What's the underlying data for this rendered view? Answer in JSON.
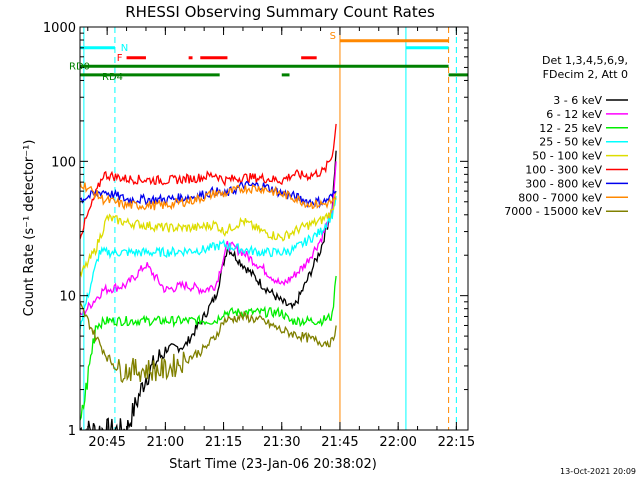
{
  "chart_data": {
    "type": "line",
    "title": "RHESSI Observing Summary Count Rates",
    "xlabel": "Start Time (23-Jan-06 20:38:02)",
    "ylabel": "Count Rate (s⁻¹ detector⁻¹)",
    "yscale": "log",
    "ylim": [
      1,
      1000
    ],
    "xlim": [
      "20:38",
      "22:18"
    ],
    "x_ticks": [
      "20:45",
      "21:00",
      "21:15",
      "21:30",
      "21:45",
      "22:00",
      "22:15"
    ],
    "y_ticks": [
      "1",
      "10",
      "100",
      "1000"
    ],
    "legend_header": [
      "Det 1,3,4,5,6,9,",
      "FDecim 2, Att 0"
    ],
    "legend_position": "right",
    "footer_date": "13-Oct-2021 20:09",
    "series": [
      {
        "name": "3 - 6 keV",
        "color": "#000000",
        "x": [
          "20:38",
          "20:44",
          "20:50",
          "20:55",
          "21:00",
          "21:05",
          "21:10",
          "21:13",
          "21:16",
          "21:20",
          "21:25",
          "21:30",
          "21:33",
          "21:36",
          "21:40",
          "21:43",
          "21:44"
        ],
        "y": [
          1.0,
          1.0,
          1.0,
          2.5,
          4.0,
          4.2,
          7.0,
          10,
          23,
          17,
          12,
          9,
          8,
          12,
          22,
          45,
          120
        ]
      },
      {
        "name": "6 - 12 keV",
        "color": "#ff00ff",
        "x": [
          "20:38",
          "20:44",
          "20:50",
          "20:55",
          "21:00",
          "21:05",
          "21:10",
          "21:13",
          "21:16",
          "21:20",
          "21:25",
          "21:30",
          "21:33",
          "21:36",
          "21:40",
          "21:43",
          "21:44"
        ],
        "y": [
          7.0,
          11,
          12,
          17,
          11,
          12,
          11,
          12,
          24,
          21,
          16,
          12,
          14,
          17,
          26,
          42,
          100
        ]
      },
      {
        "name": "12 - 25 keV",
        "color": "#00ee00",
        "x": [
          "20:38",
          "20:42",
          "20:45",
          "21:00",
          "21:13",
          "21:15",
          "21:20",
          "21:30",
          "21:32",
          "21:40",
          "21:43",
          "21:44"
        ],
        "y": [
          1.0,
          6.0,
          6.5,
          6.5,
          6.5,
          7.5,
          7.5,
          7.5,
          6.5,
          6.5,
          7.0,
          14
        ]
      },
      {
        "name": "25 - 50 keV",
        "color": "#00ffff",
        "x": [
          "20:38",
          "20:43",
          "20:50",
          "21:00",
          "21:10",
          "21:15",
          "21:20",
          "21:25",
          "21:30",
          "21:33",
          "21:36",
          "21:40",
          "21:43",
          "21:44"
        ],
        "y": [
          6.0,
          21,
          21,
          21,
          22,
          24,
          22,
          21,
          21,
          22,
          25,
          30,
          40,
          55
        ]
      },
      {
        "name": "50 - 100 keV",
        "color": "#dddd00",
        "x": [
          "20:38",
          "20:42",
          "20:45",
          "20:50",
          "21:00",
          "21:08",
          "21:13",
          "21:15",
          "21:20",
          "21:25",
          "21:30",
          "21:35",
          "21:40",
          "21:43",
          "21:44"
        ],
        "y": [
          14,
          22,
          38,
          35,
          32,
          32,
          34,
          30,
          36,
          30,
          27,
          32,
          36,
          42,
          60
        ]
      },
      {
        "name": "100 - 300 keV",
        "color": "#ff0000",
        "x": [
          "20:38",
          "20:44",
          "20:50",
          "21:00",
          "21:08",
          "21:13",
          "21:15",
          "21:20",
          "21:25",
          "21:30",
          "21:33",
          "21:37",
          "21:41",
          "21:43",
          "21:44"
        ],
        "y": [
          28,
          80,
          74,
          72,
          75,
          80,
          72,
          76,
          75,
          72,
          80,
          78,
          85,
          110,
          190
        ]
      },
      {
        "name": "300 - 800 keV",
        "color": "#0000ee",
        "x": [
          "20:38",
          "20:44",
          "20:50",
          "21:00",
          "21:08",
          "21:13",
          "21:15",
          "21:20",
          "21:25",
          "21:30",
          "21:33",
          "21:37",
          "21:41",
          "21:43",
          "21:44"
        ],
        "y": [
          52,
          60,
          52,
          52,
          55,
          60,
          56,
          66,
          66,
          58,
          55,
          50,
          50,
          55,
          60
        ]
      },
      {
        "name": "800 - 7000 keV",
        "color": "#ff8800",
        "x": [
          "20:38",
          "20:44",
          "20:50",
          "21:00",
          "21:08",
          "21:13",
          "21:15",
          "21:20",
          "21:25",
          "21:30",
          "21:33",
          "21:37",
          "21:41",
          "21:43",
          "21:44"
        ],
        "y": [
          70,
          52,
          47,
          47,
          52,
          58,
          57,
          63,
          63,
          57,
          54,
          48,
          48,
          50,
          52
        ]
      },
      {
        "name": "7000 - 15000 keV",
        "color": "#808000",
        "x": [
          "20:38",
          "20:42",
          "20:45",
          "20:48",
          "21:00",
          "21:05",
          "21:10",
          "21:13",
          "21:15",
          "21:20",
          "21:25",
          "21:30",
          "21:35",
          "21:40",
          "21:43",
          "21:44"
        ],
        "y": [
          8.5,
          5.0,
          3.5,
          2.8,
          2.8,
          3.3,
          4.0,
          5.0,
          6.5,
          7.0,
          6.5,
          5.5,
          5.0,
          4.5,
          4.5,
          6.0
        ]
      }
    ],
    "annotations": {
      "flags": [
        {
          "label": "N",
          "color": "#00ffff",
          "y": 700,
          "segments": [
            [
              "20:38",
              "20:47"
            ],
            [
              "22:02",
              "22:13"
            ]
          ]
        },
        {
          "label": "S",
          "color": "#ff8800",
          "y": 790,
          "segments": [
            [
              "21:45",
              "22:13"
            ]
          ]
        },
        {
          "label": "F",
          "color": "#ff0000",
          "y": 590,
          "segments": [
            [
              "20:50",
              "20:55"
            ],
            [
              "21:06",
              "21:07"
            ],
            [
              "21:09",
              "21:16"
            ],
            [
              "21:35",
              "21:39"
            ]
          ]
        },
        {
          "label": "RD0",
          "color": "#008000",
          "y": 510,
          "segments": [
            [
              "20:38",
              "22:13"
            ]
          ]
        },
        {
          "label": "RD4",
          "color": "#008000",
          "y": 440,
          "segments": [
            [
              "20:38",
              "21:14"
            ],
            [
              "21:30",
              "21:32"
            ],
            [
              "22:13",
              "22:18"
            ]
          ]
        }
      ],
      "vertical_lines": [
        {
          "x": "20:39",
          "color": "#00ffff",
          "style": "solid"
        },
        {
          "x": "20:47",
          "color": "#00ffff",
          "style": "dashed"
        },
        {
          "x": "21:45",
          "color": "#ff8800",
          "style": "solid"
        },
        {
          "x": "22:02",
          "color": "#00ffff",
          "style": "solid"
        },
        {
          "x": "22:13",
          "color": "#ff8800",
          "style": "dashed"
        },
        {
          "x": "22:15",
          "color": "#00ffff",
          "style": "dashed"
        }
      ]
    }
  }
}
